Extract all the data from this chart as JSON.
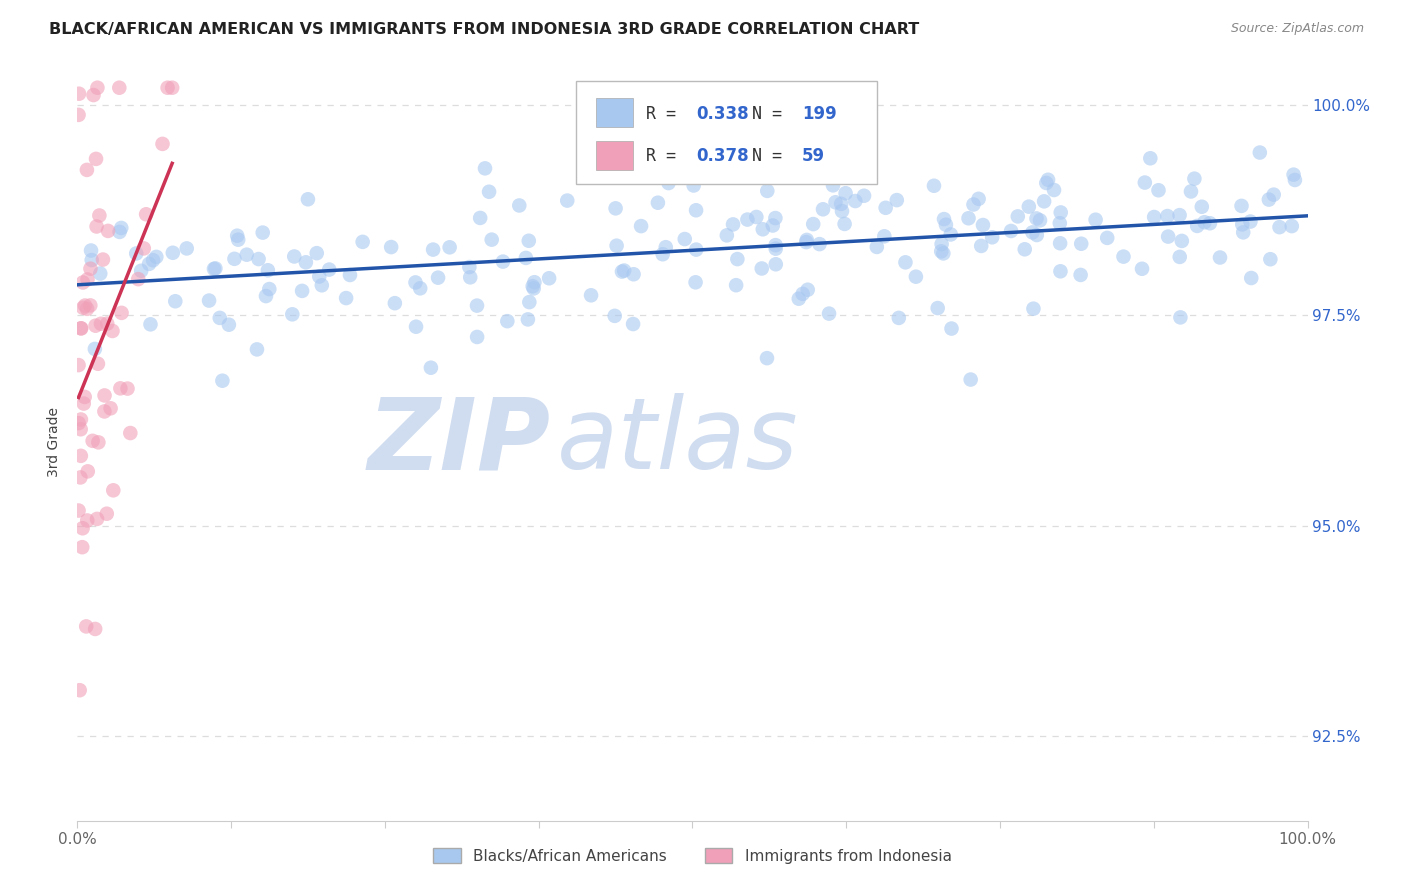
{
  "title": "BLACK/AFRICAN AMERICAN VS IMMIGRANTS FROM INDONESIA 3RD GRADE CORRELATION CHART",
  "source": "Source: ZipAtlas.com",
  "ylabel": "3rd Grade",
  "xlim": [
    0.0,
    1.0
  ],
  "ylim": [
    0.915,
    1.005
  ],
  "yticks": [
    0.925,
    0.95,
    0.975,
    1.0
  ],
  "ytick_labels": [
    "92.5%",
    "95.0%",
    "97.5%",
    "100.0%"
  ],
  "xticks": [
    0.0,
    0.125,
    0.25,
    0.375,
    0.5,
    0.625,
    0.75,
    0.875,
    1.0
  ],
  "xtick_labels": [
    "0.0%",
    "",
    "",
    "",
    "",
    "",
    "",
    "",
    "100.0%"
  ],
  "blue_R": 0.338,
  "blue_N": 199,
  "pink_R": 0.378,
  "pink_N": 59,
  "blue_color": "#a8c8f0",
  "pink_color": "#f0a0b8",
  "blue_line_color": "#2255aa",
  "pink_line_color": "#cc3355",
  "legend_text_color": "#333333",
  "legend_value_color": "#3366cc",
  "watermark_zip_color": "#d0ddf0",
  "watermark_atlas_color": "#d0ddf0",
  "title_color": "#222222",
  "source_color": "#888888",
  "ytick_color": "#3366cc",
  "xtick_color": "#666666",
  "grid_color": "#dddddd",
  "background_color": "#ffffff"
}
